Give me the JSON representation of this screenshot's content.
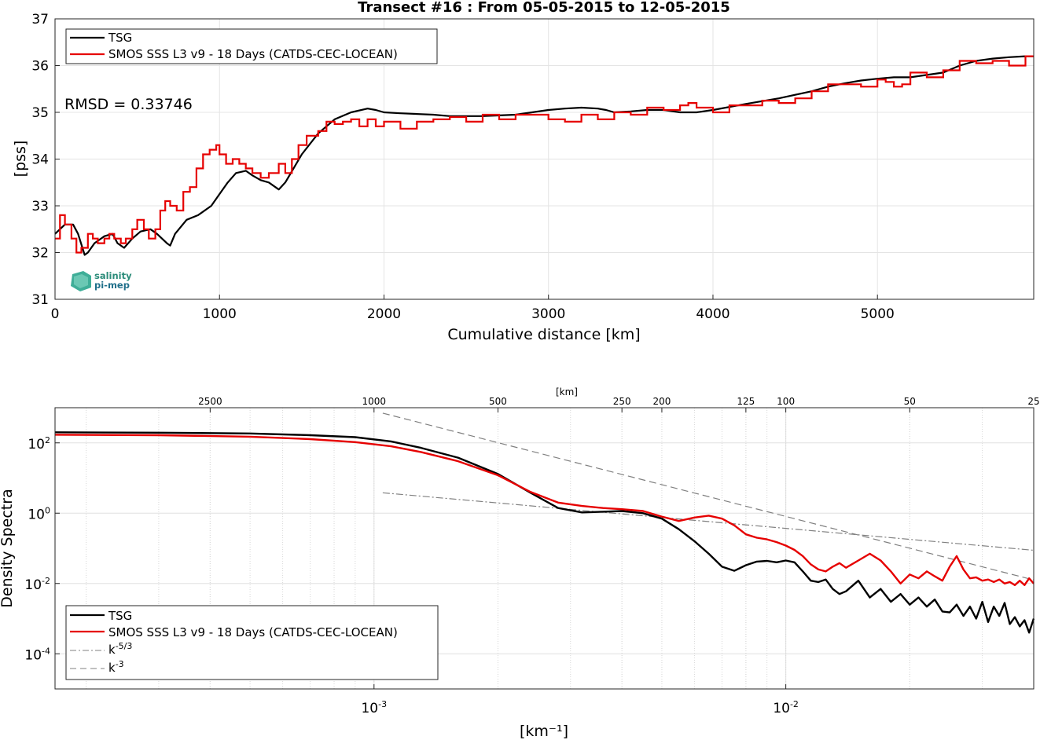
{
  "figure": {
    "title": "Transect #16 : From 05-05-2015 to 12-05-2015",
    "rmsd_text": "RMSD = 0.33746",
    "logo": {
      "line1": "salinity",
      "line2": "pi-mep"
    },
    "colors": {
      "tsg": "#000000",
      "smos": "#e60000",
      "ref": "#808080",
      "grid": "#e4e4e4"
    }
  },
  "chart_data": [
    {
      "type": "line",
      "title": "Transect #16 : From 05-05-2015 to 12-05-2015",
      "xlabel": "Cumulative distance [km]",
      "ylabel": "[pss]",
      "xlim": [
        0,
        5950
      ],
      "ylim": [
        31,
        37
      ],
      "xticks": [
        0,
        1000,
        2000,
        3000,
        4000,
        5000
      ],
      "yticks": [
        31,
        32,
        33,
        34,
        35,
        36,
        37
      ],
      "grid": true,
      "legend_position": "top-left",
      "annotation": "RMSD = 0.33746",
      "series": [
        {
          "name": "TSG",
          "color": "#000000",
          "x": [
            0,
            60,
            110,
            140,
            180,
            200,
            240,
            300,
            350,
            380,
            420,
            470,
            520,
            580,
            620,
            680,
            700,
            730,
            800,
            870,
            950,
            1000,
            1050,
            1100,
            1160,
            1200,
            1250,
            1300,
            1360,
            1400,
            1450,
            1500,
            1600,
            1700,
            1800,
            1900,
            1950,
            2000,
            2100,
            2300,
            2400,
            2600,
            2800,
            2900,
            3000,
            3100,
            3200,
            3300,
            3350,
            3400,
            3500,
            3600,
            3700,
            3800,
            3900,
            4000,
            4200,
            4400,
            4600,
            4700,
            4800,
            4900,
            5000,
            5100,
            5200,
            5300,
            5400,
            5500,
            5600,
            5700,
            5800,
            5900,
            5950
          ],
          "values": [
            32.4,
            32.6,
            32.6,
            32.4,
            31.95,
            32.0,
            32.2,
            32.35,
            32.4,
            32.2,
            32.1,
            32.3,
            32.45,
            32.5,
            32.4,
            32.2,
            32.15,
            32.4,
            32.7,
            32.8,
            33.0,
            33.25,
            33.5,
            33.7,
            33.75,
            33.65,
            33.55,
            33.5,
            33.35,
            33.5,
            33.8,
            34.1,
            34.55,
            34.85,
            35.0,
            35.08,
            35.05,
            35.0,
            34.98,
            34.95,
            34.92,
            34.92,
            34.95,
            35.0,
            35.05,
            35.08,
            35.1,
            35.08,
            35.05,
            35.0,
            35.02,
            35.05,
            35.05,
            35.0,
            35.0,
            35.05,
            35.18,
            35.3,
            35.45,
            35.55,
            35.62,
            35.68,
            35.72,
            35.75,
            35.75,
            35.8,
            35.85,
            36.0,
            36.1,
            36.15,
            36.18,
            36.2,
            36.2
          ]
        },
        {
          "name": "SMOS SSS L3 v9 - 18 Days (CATDS-CEC-LOCEAN)",
          "color": "#e60000",
          "x": [
            0,
            30,
            60,
            100,
            130,
            160,
            200,
            230,
            260,
            300,
            330,
            360,
            400,
            430,
            470,
            500,
            540,
            570,
            610,
            640,
            670,
            700,
            740,
            780,
            820,
            860,
            900,
            940,
            980,
            1000,
            1040,
            1080,
            1120,
            1160,
            1200,
            1250,
            1300,
            1360,
            1400,
            1440,
            1480,
            1530,
            1600,
            1650,
            1700,
            1750,
            1800,
            1850,
            1900,
            1950,
            2000,
            2100,
            2200,
            2300,
            2400,
            2500,
            2600,
            2700,
            2800,
            2900,
            3000,
            3100,
            3200,
            3300,
            3400,
            3500,
            3600,
            3700,
            3800,
            3850,
            3900,
            4000,
            4100,
            4200,
            4300,
            4400,
            4500,
            4600,
            4700,
            4800,
            4900,
            5000,
            5050,
            5100,
            5150,
            5200,
            5300,
            5400,
            5500,
            5600,
            5700,
            5800,
            5900,
            5950
          ],
          "values": [
            32.3,
            32.8,
            32.6,
            32.3,
            32.0,
            32.1,
            32.4,
            32.3,
            32.2,
            32.3,
            32.4,
            32.3,
            32.2,
            32.3,
            32.5,
            32.7,
            32.5,
            32.3,
            32.5,
            32.9,
            33.1,
            33.0,
            32.9,
            33.3,
            33.4,
            33.8,
            34.1,
            34.2,
            34.3,
            34.1,
            33.9,
            34.0,
            33.9,
            33.8,
            33.7,
            33.6,
            33.7,
            33.9,
            33.7,
            34.0,
            34.3,
            34.5,
            34.6,
            34.8,
            34.75,
            34.8,
            34.85,
            34.7,
            34.85,
            34.7,
            34.8,
            34.65,
            34.8,
            34.85,
            34.9,
            34.8,
            34.95,
            34.85,
            34.95,
            34.95,
            34.85,
            34.8,
            34.95,
            34.85,
            35.0,
            34.95,
            35.1,
            35.05,
            35.15,
            35.2,
            35.1,
            35.0,
            35.15,
            35.15,
            35.25,
            35.2,
            35.3,
            35.45,
            35.6,
            35.6,
            35.55,
            35.7,
            35.65,
            35.55,
            35.6,
            35.85,
            35.75,
            35.9,
            36.1,
            36.05,
            36.1,
            36.0,
            36.2,
            36.2
          ]
        }
      ]
    },
    {
      "type": "line",
      "xlabel": "[km⁻¹]",
      "ylabel": "Density Spectra",
      "xscale": "log",
      "yscale": "log",
      "xlim": [
        0.000168,
        0.04
      ],
      "ylim": [
        1e-05,
        1000
      ],
      "xticks_labels": [
        "10^-3",
        "10^-2"
      ],
      "yticks_labels": [
        "10^-4",
        "10^-2",
        "10^0",
        "10^2"
      ],
      "top_axis_label": "[km]",
      "top_axis_ticks": [
        2500,
        1000,
        500,
        250,
        200,
        125,
        100,
        50,
        25
      ],
      "grid": true,
      "legend_position": "bottom-left",
      "legend_labels": [
        "TSG",
        "SMOS SSS L3 v9 - 18 Days (CATDS-CEC-LOCEAN)",
        "k^-5/3",
        "k^-3"
      ],
      "series": [
        {
          "name": "TSG",
          "color": "#000000",
          "x": [
            0.000168,
            0.0003,
            0.0005,
            0.0007,
            0.0009,
            0.0011,
            0.0013,
            0.0016,
            0.002,
            0.0024,
            0.0028,
            0.0032,
            0.0036,
            0.004,
            0.0045,
            0.005,
            0.0055,
            0.006,
            0.0065,
            0.007,
            0.0075,
            0.008,
            0.0085,
            0.009,
            0.0095,
            0.01,
            0.0105,
            0.011,
            0.0115,
            0.012,
            0.0125,
            0.013,
            0.0135,
            0.014,
            0.015,
            0.016,
            0.017,
            0.018,
            0.019,
            0.02,
            0.021,
            0.022,
            0.023,
            0.024,
            0.025,
            0.026,
            0.027,
            0.028,
            0.029,
            0.03,
            0.031,
            0.032,
            0.033,
            0.034,
            0.035,
            0.036,
            0.037,
            0.038,
            0.039,
            0.04
          ],
          "values": [
            200,
            195,
            185,
            165,
            145,
            110,
            72,
            38,
            13,
            3.8,
            1.4,
            1.05,
            1.1,
            1.15,
            1.0,
            0.7,
            0.35,
            0.16,
            0.07,
            0.03,
            0.023,
            0.033,
            0.042,
            0.044,
            0.04,
            0.045,
            0.04,
            0.022,
            0.012,
            0.011,
            0.013,
            0.007,
            0.005,
            0.006,
            0.012,
            0.004,
            0.007,
            0.003,
            0.005,
            0.0025,
            0.004,
            0.0022,
            0.0035,
            0.0016,
            0.0015,
            0.0025,
            0.0012,
            0.0022,
            0.001,
            0.003,
            0.0008,
            0.0022,
            0.0012,
            0.0028,
            0.0007,
            0.0011,
            0.0006,
            0.0009,
            0.0004,
            0.001
          ]
        },
        {
          "name": "SMOS SSS L3 v9 - 18 Days (CATDS-CEC-LOCEAN)",
          "color": "#e60000",
          "x": [
            0.000168,
            0.0003,
            0.0005,
            0.0007,
            0.0009,
            0.0011,
            0.0013,
            0.0016,
            0.002,
            0.0024,
            0.0028,
            0.0032,
            0.0036,
            0.004,
            0.0045,
            0.005,
            0.0055,
            0.006,
            0.0065,
            0.007,
            0.0075,
            0.008,
            0.0085,
            0.009,
            0.0095,
            0.01,
            0.0105,
            0.011,
            0.0115,
            0.012,
            0.0125,
            0.013,
            0.0135,
            0.014,
            0.015,
            0.016,
            0.017,
            0.018,
            0.019,
            0.02,
            0.021,
            0.022,
            0.023,
            0.024,
            0.025,
            0.026,
            0.027,
            0.028,
            0.029,
            0.03,
            0.031,
            0.032,
            0.033,
            0.034,
            0.035,
            0.036,
            0.037,
            0.038,
            0.039,
            0.04
          ],
          "values": [
            170,
            165,
            150,
            128,
            105,
            80,
            55,
            30,
            12,
            4.0,
            2.0,
            1.6,
            1.4,
            1.3,
            1.15,
            0.8,
            0.6,
            0.75,
            0.85,
            0.7,
            0.45,
            0.25,
            0.2,
            0.18,
            0.15,
            0.12,
            0.09,
            0.06,
            0.035,
            0.025,
            0.022,
            0.03,
            0.038,
            0.028,
            0.045,
            0.07,
            0.045,
            0.022,
            0.01,
            0.018,
            0.014,
            0.022,
            0.016,
            0.012,
            0.03,
            0.06,
            0.025,
            0.014,
            0.015,
            0.012,
            0.013,
            0.011,
            0.013,
            0.01,
            0.011,
            0.009,
            0.012,
            0.009,
            0.014,
            0.01
          ]
        },
        {
          "name": "k^-5/3",
          "color": "#808080",
          "x": [
            0.00105,
            0.04
          ],
          "values": [
            3.8,
            0.088
          ]
        },
        {
          "name": "k^-3",
          "color": "#808080",
          "x": [
            0.00105,
            0.04
          ],
          "values": [
            700,
            0.0126
          ]
        }
      ]
    }
  ]
}
